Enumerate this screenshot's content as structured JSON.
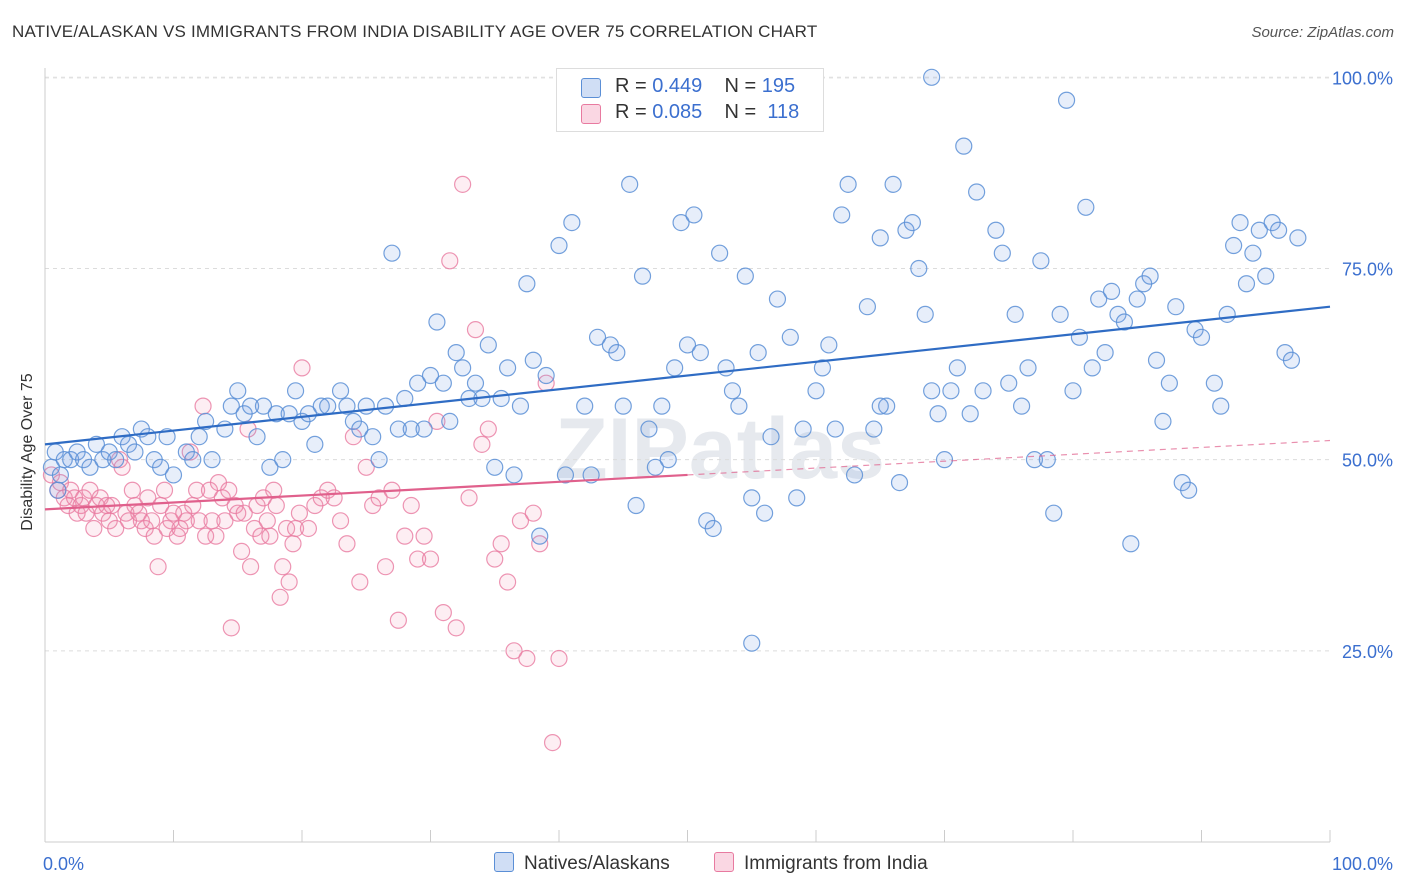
{
  "title": "NATIVE/ALASKAN VS IMMIGRANTS FROM INDIA DISABILITY AGE OVER 75 CORRELATION CHART",
  "source": "Source: ZipAtlas.com",
  "watermark": "ZIPatlas",
  "colors": {
    "blue": "#5b8fd6",
    "blue_fill": "rgba(120,160,225,0.18)",
    "blue_line": "#2f6cc4",
    "pink": "#e87aa0",
    "pink_fill": "rgba(240,140,175,0.15)",
    "pink_line": "#e0608c",
    "axis_text": "#3b6fcf"
  },
  "legend_top": [
    {
      "r_label": "R = ",
      "r_value": "0.449",
      "n_label": "N = ",
      "n_value": "195"
    },
    {
      "r_label": "R = ",
      "r_value": "0.085",
      "n_label": "N = ",
      "n_value": "118"
    }
  ],
  "legend_bottom": [
    "Natives/Alaskans",
    "Immigrants from India"
  ],
  "chart_data": {
    "type": "scatter",
    "title": "NATIVE/ALASKAN VS IMMIGRANTS FROM INDIA DISABILITY AGE OVER 75 CORRELATION CHART",
    "xlabel": "",
    "ylabel": "Disability Age Over 75",
    "xlim": [
      0,
      100
    ],
    "ylim": [
      0,
      102
    ],
    "x_tick_labels": [
      "0.0%",
      "100.0%"
    ],
    "y_ticks": [
      25,
      50,
      75,
      100
    ],
    "y_tick_labels": [
      "25.0%",
      "50.0%",
      "75.0%",
      "100.0%"
    ],
    "grid": "horizontal-dashed",
    "legend_placement": "top-center and bottom-center",
    "series": [
      {
        "name": "Natives/Alaskans",
        "r": 0.449,
        "n": 195,
        "trend": {
          "x": [
            0,
            100
          ],
          "y": [
            52,
            70
          ]
        },
        "points": [
          [
            0.5,
            49
          ],
          [
            0.8,
            51
          ],
          [
            1,
            46
          ],
          [
            1.2,
            48
          ],
          [
            1.5,
            50
          ],
          [
            2,
            50
          ],
          [
            2.5,
            51
          ],
          [
            3,
            50
          ],
          [
            3.5,
            49
          ],
          [
            4,
            52
          ],
          [
            4.5,
            50
          ],
          [
            5,
            51
          ],
          [
            5.5,
            50
          ],
          [
            6,
            53
          ],
          [
            6.5,
            52
          ],
          [
            7,
            51
          ],
          [
            7.5,
            54
          ],
          [
            8,
            53
          ],
          [
            8.5,
            50
          ],
          [
            9,
            49
          ],
          [
            9.5,
            53
          ],
          [
            10,
            48
          ],
          [
            11,
            51
          ],
          [
            11.5,
            50
          ],
          [
            12,
            53
          ],
          [
            12.5,
            55
          ],
          [
            13,
            50
          ],
          [
            14,
            54
          ],
          [
            14.5,
            57
          ],
          [
            15,
            59
          ],
          [
            15.5,
            56
          ],
          [
            16,
            57
          ],
          [
            16.5,
            53
          ],
          [
            17,
            57
          ],
          [
            17.5,
            49
          ],
          [
            18,
            56
          ],
          [
            18.5,
            50
          ],
          [
            19,
            56
          ],
          [
            19.5,
            59
          ],
          [
            20,
            55
          ],
          [
            20.5,
            56
          ],
          [
            21,
            52
          ],
          [
            21.5,
            57
          ],
          [
            22,
            57
          ],
          [
            23,
            59
          ],
          [
            23.5,
            57
          ],
          [
            24,
            55
          ],
          [
            24.5,
            54
          ],
          [
            25,
            57
          ],
          [
            25.5,
            53
          ],
          [
            26,
            50
          ],
          [
            26.5,
            57
          ],
          [
            27,
            77
          ],
          [
            27.5,
            54
          ],
          [
            28,
            58
          ],
          [
            28.5,
            54
          ],
          [
            29,
            60
          ],
          [
            29.5,
            54
          ],
          [
            30,
            61
          ],
          [
            30.5,
            68
          ],
          [
            31,
            60
          ],
          [
            31.5,
            55
          ],
          [
            32,
            64
          ],
          [
            32.5,
            62
          ],
          [
            33,
            58
          ],
          [
            33.5,
            60
          ],
          [
            34,
            58
          ],
          [
            34.5,
            65
          ],
          [
            35,
            49
          ],
          [
            35.5,
            58
          ],
          [
            36,
            62
          ],
          [
            36.5,
            48
          ],
          [
            37,
            57
          ],
          [
            37.5,
            73
          ],
          [
            38,
            63
          ],
          [
            38.5,
            40
          ],
          [
            39,
            61
          ],
          [
            40,
            78
          ],
          [
            40.5,
            48
          ],
          [
            41,
            81
          ],
          [
            42,
            57
          ],
          [
            42.5,
            48
          ],
          [
            43,
            66
          ],
          [
            44,
            65
          ],
          [
            44.5,
            64
          ],
          [
            45,
            57
          ],
          [
            45.5,
            86
          ],
          [
            46,
            44
          ],
          [
            46.5,
            74
          ],
          [
            47,
            54
          ],
          [
            47.5,
            49
          ],
          [
            48,
            57
          ],
          [
            48.5,
            50
          ],
          [
            49,
            62
          ],
          [
            49.5,
            81
          ],
          [
            50,
            65
          ],
          [
            50.5,
            82
          ],
          [
            51,
            64
          ],
          [
            51.5,
            42
          ],
          [
            52,
            41
          ],
          [
            52.5,
            77
          ],
          [
            53,
            62
          ],
          [
            53.5,
            59
          ],
          [
            54,
            57
          ],
          [
            54.5,
            74
          ],
          [
            55,
            45
          ],
          [
            55.5,
            64
          ],
          [
            56,
            43
          ],
          [
            56.5,
            53
          ],
          [
            57,
            71
          ],
          [
            58,
            66
          ],
          [
            58.5,
            45
          ],
          [
            59,
            54
          ],
          [
            60,
            59
          ],
          [
            60.5,
            62
          ],
          [
            61,
            65
          ],
          [
            61.5,
            54
          ],
          [
            62,
            82
          ],
          [
            62.5,
            86
          ],
          [
            63,
            48
          ],
          [
            64,
            70
          ],
          [
            64.5,
            54
          ],
          [
            65,
            79
          ],
          [
            65.5,
            57
          ],
          [
            66,
            86
          ],
          [
            66.5,
            47
          ],
          [
            67,
            80
          ],
          [
            67.5,
            81
          ],
          [
            68,
            75
          ],
          [
            68.5,
            69
          ],
          [
            69,
            59
          ],
          [
            69.5,
            56
          ],
          [
            70,
            50
          ],
          [
            70.5,
            59
          ],
          [
            71,
            62
          ],
          [
            71.5,
            91
          ],
          [
            72,
            56
          ],
          [
            72.5,
            85
          ],
          [
            73,
            59
          ],
          [
            74,
            80
          ],
          [
            74.5,
            77
          ],
          [
            75,
            60
          ],
          [
            75.5,
            69
          ],
          [
            76,
            57
          ],
          [
            76.5,
            62
          ],
          [
            77,
            50
          ],
          [
            77.5,
            76
          ],
          [
            78,
            50
          ],
          [
            78.5,
            43
          ],
          [
            79,
            69
          ],
          [
            79.5,
            97
          ],
          [
            80,
            59
          ],
          [
            80.5,
            66
          ],
          [
            81,
            83
          ],
          [
            81.5,
            62
          ],
          [
            82,
            71
          ],
          [
            82.5,
            64
          ],
          [
            83,
            72
          ],
          [
            83.5,
            69
          ],
          [
            84,
            68
          ],
          [
            84.5,
            39
          ],
          [
            85,
            71
          ],
          [
            85.5,
            73
          ],
          [
            86,
            74
          ],
          [
            86.5,
            63
          ],
          [
            87,
            55
          ],
          [
            87.5,
            60
          ],
          [
            88,
            70
          ],
          [
            88.5,
            47
          ],
          [
            89,
            46
          ],
          [
            89.5,
            67
          ],
          [
            90,
            66
          ],
          [
            91,
            60
          ],
          [
            91.5,
            57
          ],
          [
            92,
            69
          ],
          [
            92.5,
            78
          ],
          [
            93,
            81
          ],
          [
            93.5,
            73
          ],
          [
            94,
            77
          ],
          [
            94.5,
            80
          ],
          [
            95,
            74
          ],
          [
            95.5,
            81
          ],
          [
            96,
            80
          ],
          [
            96.5,
            64
          ],
          [
            97,
            63
          ],
          [
            97.5,
            79
          ],
          [
            69,
            100
          ],
          [
            55,
            26
          ],
          [
            65,
            57
          ]
        ]
      },
      {
        "name": "Immigrants from India",
        "r": 0.085,
        "n": 118,
        "trend": {
          "x": [
            0,
            50
          ],
          "y": [
            43.5,
            48
          ]
        },
        "trend_dashed": {
          "x": [
            50,
            100
          ],
          "y": [
            48,
            52.5
          ]
        },
        "points": [
          [
            0.5,
            48
          ],
          [
            1,
            46
          ],
          [
            1.2,
            47
          ],
          [
            1.5,
            45
          ],
          [
            1.8,
            44
          ],
          [
            2,
            46
          ],
          [
            2.3,
            45
          ],
          [
            2.5,
            43
          ],
          [
            2.8,
            44
          ],
          [
            3,
            45
          ],
          [
            3.2,
            43
          ],
          [
            3.5,
            46
          ],
          [
            3.8,
            41
          ],
          [
            4,
            44
          ],
          [
            4.3,
            45
          ],
          [
            4.5,
            43
          ],
          [
            4.8,
            44
          ],
          [
            5,
            42
          ],
          [
            5.2,
            44
          ],
          [
            5.5,
            41
          ],
          [
            5.8,
            50
          ],
          [
            6,
            49
          ],
          [
            6.3,
            43
          ],
          [
            6.5,
            42
          ],
          [
            6.8,
            46
          ],
          [
            7,
            44
          ],
          [
            7.3,
            43
          ],
          [
            7.5,
            42
          ],
          [
            7.8,
            41
          ],
          [
            8,
            45
          ],
          [
            8.3,
            42
          ],
          [
            8.5,
            40
          ],
          [
            8.8,
            36
          ],
          [
            9,
            44
          ],
          [
            9.3,
            46
          ],
          [
            9.5,
            41
          ],
          [
            9.8,
            42
          ],
          [
            10,
            43
          ],
          [
            10.3,
            40
          ],
          [
            10.5,
            41
          ],
          [
            10.8,
            43
          ],
          [
            11,
            42
          ],
          [
            11.3,
            51
          ],
          [
            11.5,
            44
          ],
          [
            11.8,
            46
          ],
          [
            12,
            42
          ],
          [
            12.3,
            57
          ],
          [
            12.5,
            40
          ],
          [
            12.8,
            46
          ],
          [
            13,
            42
          ],
          [
            13.3,
            40
          ],
          [
            13.5,
            47
          ],
          [
            13.8,
            45
          ],
          [
            14,
            42
          ],
          [
            14.3,
            46
          ],
          [
            14.5,
            28
          ],
          [
            14.8,
            44
          ],
          [
            15,
            43
          ],
          [
            15.3,
            38
          ],
          [
            15.5,
            43
          ],
          [
            15.8,
            54
          ],
          [
            16,
            36
          ],
          [
            16.3,
            41
          ],
          [
            16.5,
            44
          ],
          [
            16.8,
            40
          ],
          [
            17,
            45
          ],
          [
            17.3,
            42
          ],
          [
            17.5,
            40
          ],
          [
            17.8,
            46
          ],
          [
            18,
            44
          ],
          [
            18.3,
            32
          ],
          [
            18.5,
            36
          ],
          [
            18.8,
            41
          ],
          [
            19,
            34
          ],
          [
            19.3,
            39
          ],
          [
            19.5,
            41
          ],
          [
            19.8,
            43
          ],
          [
            20,
            62
          ],
          [
            20.5,
            41
          ],
          [
            21,
            44
          ],
          [
            21.5,
            45
          ],
          [
            22,
            46
          ],
          [
            22.5,
            45
          ],
          [
            23,
            42
          ],
          [
            23.5,
            39
          ],
          [
            24,
            53
          ],
          [
            24.5,
            34
          ],
          [
            25,
            49
          ],
          [
            25.5,
            44
          ],
          [
            26,
            45
          ],
          [
            26.5,
            36
          ],
          [
            27,
            46
          ],
          [
            27.5,
            29
          ],
          [
            28,
            40
          ],
          [
            28.5,
            44
          ],
          [
            29,
            37
          ],
          [
            29.5,
            40
          ],
          [
            30,
            37
          ],
          [
            30.5,
            55
          ],
          [
            31,
            30
          ],
          [
            31.5,
            76
          ],
          [
            32,
            28
          ],
          [
            32.5,
            86
          ],
          [
            33,
            45
          ],
          [
            33.5,
            67
          ],
          [
            34,
            52
          ],
          [
            34.5,
            54
          ],
          [
            35,
            37
          ],
          [
            35.5,
            39
          ],
          [
            36,
            34
          ],
          [
            36.5,
            25
          ],
          [
            37,
            42
          ],
          [
            37.5,
            24
          ],
          [
            38,
            43
          ],
          [
            38.5,
            39
          ],
          [
            39,
            60
          ],
          [
            39.5,
            13
          ],
          [
            40,
            24
          ]
        ]
      }
    ]
  }
}
